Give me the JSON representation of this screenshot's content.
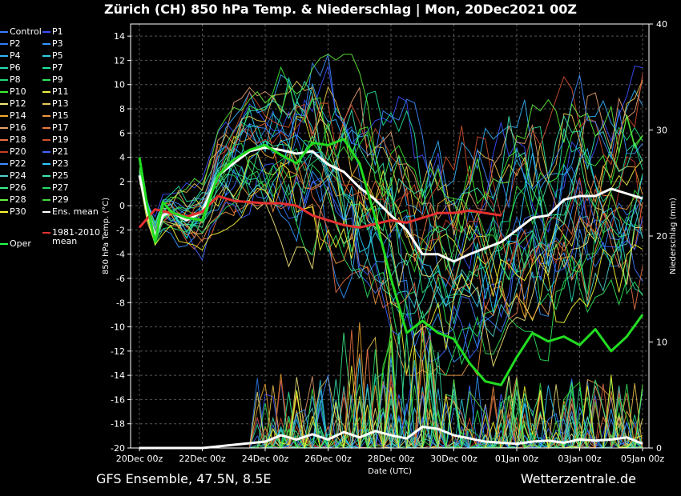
{
  "title": "Zürich  (CH)  850 hPa Temp. & Niederschlag | Mon, 20Dec2021 00Z",
  "footer": {
    "left": "GFS Ensemble, 47.5N, 8.5E",
    "right": "Wetterzentrale.de"
  },
  "legend": [
    {
      "label": "Control",
      "color": "#3c78ff"
    },
    {
      "label": "P1",
      "color": "#3c50ff"
    },
    {
      "label": "P2",
      "color": "#2f7df2"
    },
    {
      "label": "P3",
      "color": "#3296ff"
    },
    {
      "label": "P4",
      "color": "#33b5ff"
    },
    {
      "label": "P5",
      "color": "#2ed1e6"
    },
    {
      "label": "P6",
      "color": "#27dbb7"
    },
    {
      "label": "P7",
      "color": "#20e6a0"
    },
    {
      "label": "P8",
      "color": "#22d970"
    },
    {
      "label": "P9",
      "color": "#2ee65a"
    },
    {
      "label": "P10",
      "color": "#3cf034"
    },
    {
      "label": "P11",
      "color": "#f0f040"
    },
    {
      "label": "P12",
      "color": "#f3e67a"
    },
    {
      "label": "P13",
      "color": "#f0c850"
    },
    {
      "label": "P14",
      "color": "#f0a830"
    },
    {
      "label": "P15",
      "color": "#f09640"
    },
    {
      "label": "P16",
      "color": "#e6a070"
    },
    {
      "label": "P17",
      "color": "#f07840"
    },
    {
      "label": "P18",
      "color": "#e66e46"
    },
    {
      "label": "P19",
      "color": "#d2502d"
    },
    {
      "label": "P20",
      "color": "#c83c28"
    },
    {
      "label": "P21",
      "color": "#3c64ff"
    },
    {
      "label": "P22",
      "color": "#3c8cff"
    },
    {
      "label": "P23",
      "color": "#2ec8ff"
    },
    {
      "label": "P24",
      "color": "#50d2c8"
    },
    {
      "label": "P25",
      "color": "#3ce6b4"
    },
    {
      "label": "P26",
      "color": "#3cf08c"
    },
    {
      "label": "P27",
      "color": "#28dc64"
    },
    {
      "label": "P28",
      "color": "#64f03c"
    },
    {
      "label": "P29",
      "color": "#3cdc3c"
    },
    {
      "label": "P30",
      "color": "#fafa32"
    },
    {
      "label": "Ens. mean",
      "color": "#ffffff"
    },
    {
      "label": "Oper",
      "color": "#22ff44"
    },
    {
      "label": "1981-2010 mean",
      "color": "#e43030"
    }
  ],
  "chart_data": {
    "type": "line",
    "xlabel": "Date (UTC)",
    "ylabel": "850 hPa Temp. (°C)",
    "y2label": "Niederschlag (mm)",
    "x_ticks": [
      "20Dec 00z",
      "22Dec 00z",
      "24Dec 00z",
      "26Dec 00z",
      "28Dec 00z",
      "30Dec 00z",
      "01Jan 00z",
      "03Jan 00z",
      "05Jan 00z"
    ],
    "xlim_hours": [
      0,
      384
    ],
    "ylim": [
      -20,
      15
    ],
    "y_ticks": [
      -20,
      -18,
      -16,
      -14,
      -12,
      -10,
      -8,
      -6,
      -4,
      -2,
      0,
      2,
      4,
      6,
      8,
      10,
      12,
      14
    ],
    "y2lim": [
      0,
      40
    ],
    "y2_ticks": [
      0,
      10,
      20,
      30,
      40
    ],
    "grid": true,
    "series": [
      {
        "name": "Ens. mean",
        "x": [
          0,
          6,
          12,
          18,
          24,
          36,
          48,
          60,
          72,
          84,
          96,
          108,
          120,
          132,
          144,
          156,
          168,
          180,
          192,
          204,
          216,
          228,
          240,
          252,
          264,
          276,
          288,
          300,
          312,
          324,
          336,
          348,
          360,
          372,
          384
        ],
        "y": [
          2.5,
          -0.5,
          -2.5,
          -0.8,
          -0.5,
          -1.2,
          -0.5,
          2.5,
          3.5,
          4.5,
          4.8,
          4.6,
          4.3,
          4.5,
          3.4,
          2.8,
          1.5,
          0.5,
          -0.8,
          -2.0,
          -4.0,
          -4.0,
          -4.6,
          -4.0,
          -3.5,
          -3.0,
          -2.0,
          -1.0,
          -0.8,
          0.5,
          0.8,
          0.8,
          1.4,
          1.0,
          0.6
        ]
      },
      {
        "name": "1981-2010 mean",
        "x": [
          0,
          12,
          24,
          36,
          48,
          60,
          72,
          84,
          96,
          108,
          120,
          132,
          144,
          156,
          168,
          180,
          192,
          204,
          216,
          228,
          240,
          252,
          264,
          276
        ],
        "y": [
          -1.8,
          -0.3,
          -0.6,
          -0.9,
          -0.5,
          0.8,
          0.4,
          0.3,
          0.2,
          0.2,
          0.0,
          -0.8,
          -1.2,
          -1.6,
          -1.8,
          -1.5,
          -1.2,
          -1.4,
          -1.0,
          -0.6,
          -0.6,
          -0.4,
          -0.6,
          -0.8
        ]
      },
      {
        "name": "Oper",
        "x": [
          0,
          6,
          12,
          18,
          24,
          36,
          48,
          60,
          72,
          84,
          96,
          108,
          120,
          132,
          144,
          156,
          168,
          180,
          192,
          204,
          216,
          228,
          240,
          252,
          264,
          276,
          288,
          300,
          312,
          324,
          336,
          348,
          360,
          372,
          384
        ],
        "y": [
          4.0,
          0.0,
          -3.0,
          0.3,
          -0.5,
          -1.0,
          -1.2,
          2.5,
          3.8,
          4.6,
          5.0,
          4.2,
          3.5,
          5.2,
          5.0,
          5.5,
          3.5,
          -1.0,
          -6.0,
          -10.5,
          -9.5,
          -10.5,
          -11.0,
          -13.0,
          -14.5,
          -14.8,
          -12.5,
          -10.5,
          -11.2,
          -10.8,
          -11.5,
          -10.2,
          -12.0,
          -10.8,
          -9.0
        ]
      }
    ],
    "precip_mean": {
      "x": [
        0,
        48,
        72,
        96,
        108,
        120,
        132,
        144,
        156,
        168,
        180,
        192,
        204,
        216,
        228,
        240,
        252,
        264,
        276,
        288,
        300,
        312,
        324,
        336,
        348,
        360,
        372,
        384
      ],
      "y": [
        0,
        0,
        0.3,
        0.6,
        1.2,
        0.8,
        1.3,
        0.8,
        1.5,
        1.0,
        1.6,
        1.2,
        0.9,
        2.0,
        1.8,
        1.2,
        0.9,
        0.6,
        0.5,
        0.4,
        0.6,
        0.7,
        0.5,
        0.8,
        0.7,
        0.8,
        1.0,
        0.4
      ]
    }
  }
}
